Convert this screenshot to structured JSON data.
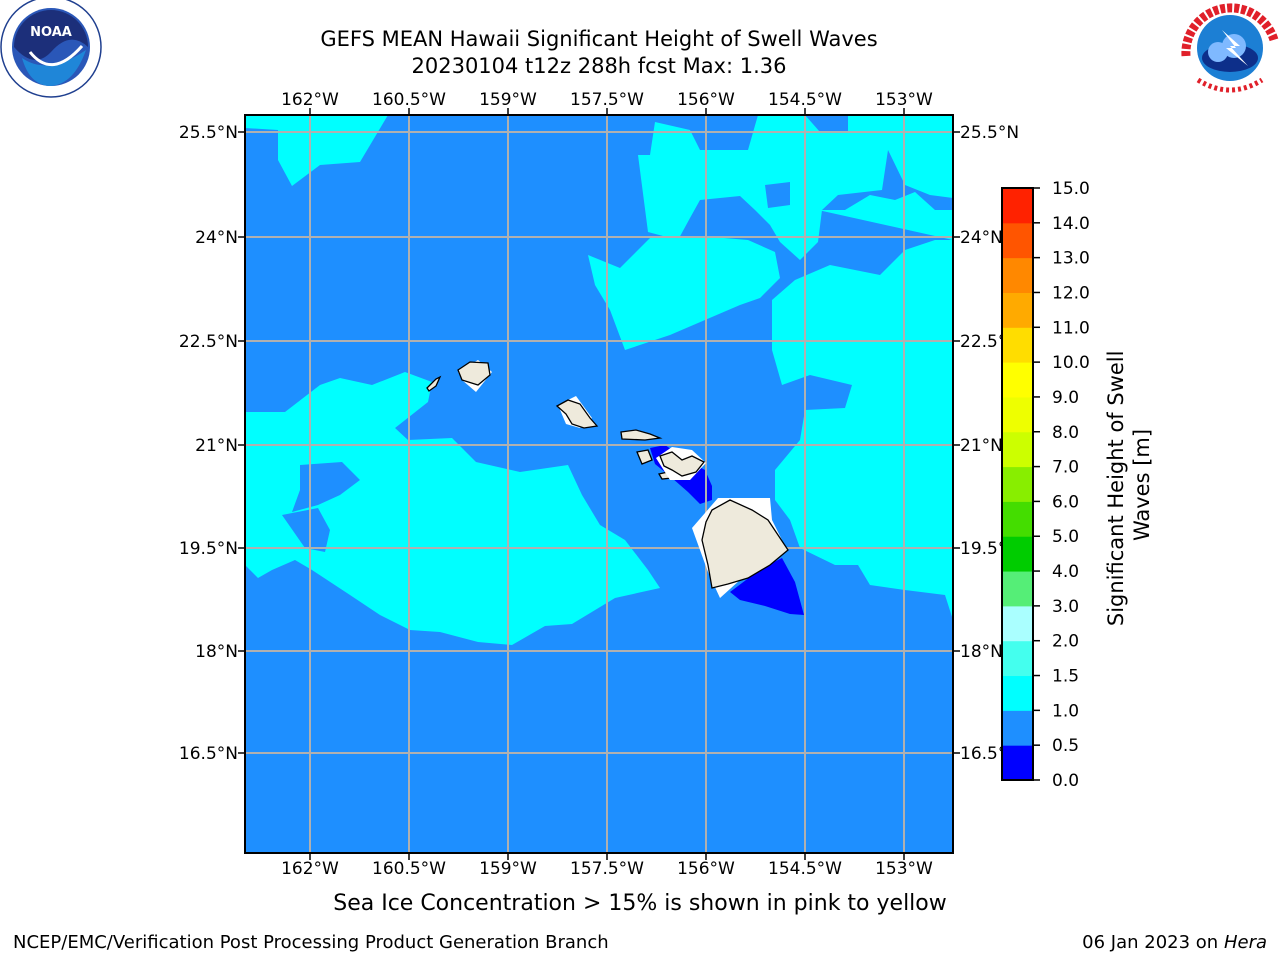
{
  "header": {
    "title": "GEFS MEAN Hawaii Significant Height of Swell Waves",
    "subtitle": "20230104 t12z 288h fcst   Max: 1.36",
    "noaa_logo": "noaa-logo",
    "nws_logo": "national-weather-service-logo",
    "noaa_logo_ring_text": "NATIONAL OCEANIC AND ATMOSPHERIC ADMINISTRATION · U.S. DEPARTMENT OF COMMERCE",
    "nws_logo_ring_text": "NATIONAL WEATHER SERVICE"
  },
  "map": {
    "lon_labels": [
      "162°W",
      "160.5°W",
      "159°W",
      "157.5°W",
      "156°W",
      "154.5°W",
      "153°W"
    ],
    "lat_labels": [
      "25.5°N",
      "24°N",
      "22.5°N",
      "21°N",
      "19.5°N",
      "18°N",
      "16.5°N"
    ],
    "lon_values": [
      -162,
      -160.5,
      -159,
      -157.5,
      -156,
      -154.5,
      -153
    ],
    "lat_values": [
      25.5,
      24,
      22.5,
      21,
      19.5,
      18,
      16.5
    ],
    "grid": true,
    "colors": {
      "band_0_0.5": "#0000ff",
      "band_0.5_1.0": "#1e8fff",
      "band_1.0_1.5": "#00ffff",
      "land": "#eeeadc",
      "gridline": "#b0b0b0"
    }
  },
  "colorbar": {
    "label": "Significant Height of Swell Waves [m]",
    "ticks": [
      "0.0",
      "0.5",
      "1.0",
      "1.5",
      "2.0",
      "3.0",
      "4.0",
      "5.0",
      "6.0",
      "7.0",
      "8.0",
      "9.0",
      "10.0",
      "11.0",
      "12.0",
      "13.0",
      "14.0",
      "15.0"
    ],
    "colors": [
      "#0000ff",
      "#1e8fff",
      "#00ffff",
      "#44ffee",
      "#aaffff",
      "#55ee77",
      "#00cc00",
      "#44dd00",
      "#88ee00",
      "#ccff00",
      "#eeff00",
      "#ffff00",
      "#ffdd00",
      "#ffaa00",
      "#ff8800",
      "#ff5500",
      "#ff2200",
      "#ff0000"
    ]
  },
  "footer": {
    "note": "Sea Ice Concentration > 15% is shown in pink to yellow",
    "credit": "NCEP/EMC/Verification Post Processing Product Generation Branch",
    "date": "06 Jan 2023 on ",
    "host": "Hera"
  }
}
